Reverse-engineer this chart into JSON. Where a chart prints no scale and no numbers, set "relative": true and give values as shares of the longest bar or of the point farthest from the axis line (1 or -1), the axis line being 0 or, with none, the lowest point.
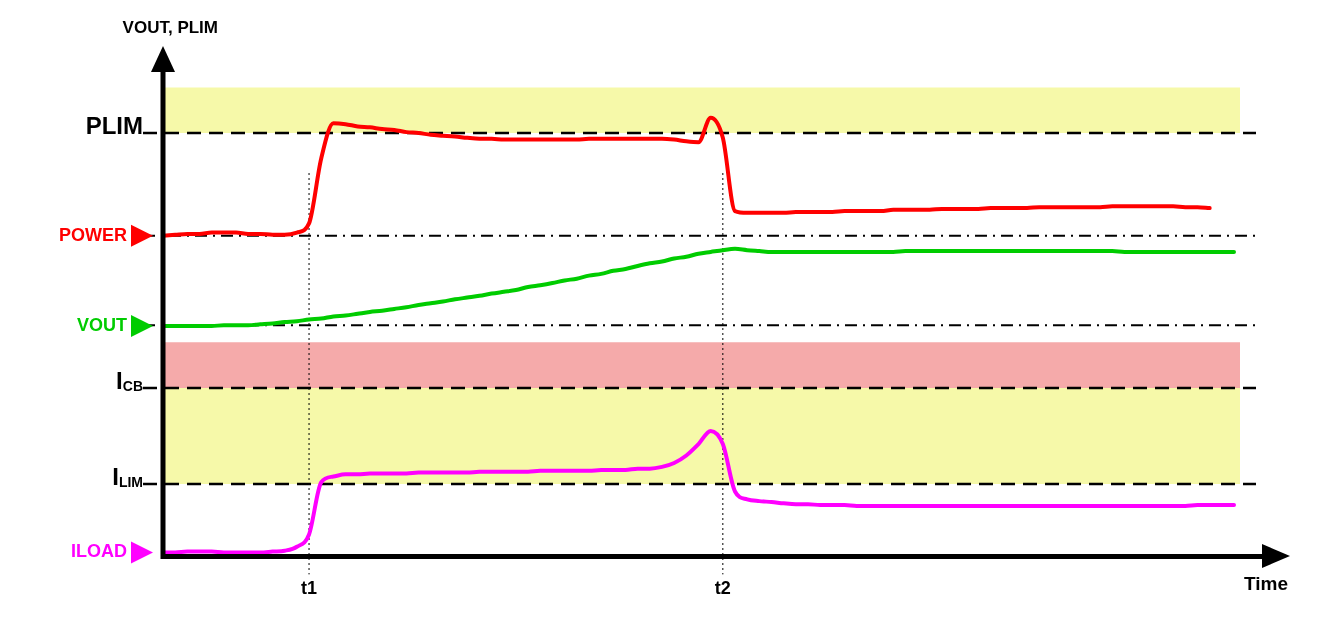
{
  "chart_data": {
    "type": "line",
    "relative": true,
    "legend": "left",
    "ylabel": "VOUT, PLIM",
    "xlabel": "Time",
    "categories": [
      null,
      null,
      null,
      null,
      null,
      null,
      null,
      null,
      null,
      null,
      null,
      null,
      "t1",
      null,
      null,
      null,
      null,
      null,
      null,
      null,
      null,
      null,
      null,
      null,
      null,
      null,
      null,
      null,
      null,
      null,
      null,
      null,
      null,
      null,
      null,
      null,
      null,
      null,
      null,
      null,
      null,
      null,
      null,
      null,
      null,
      null,
      "t2",
      null,
      null,
      null,
      null,
      null,
      null,
      null,
      null,
      null,
      null,
      null,
      null,
      null,
      null,
      null,
      null,
      null,
      null,
      null,
      null,
      null,
      null,
      null,
      null,
      null,
      null,
      null,
      null,
      null,
      null,
      null,
      null,
      null,
      null,
      null,
      null,
      null,
      null,
      null,
      null,
      null,
      null
    ],
    "series": [
      {
        "name": "POWER",
        "color": "#ff0000",
        "values": [
          0.731,
          0.733,
          0.735,
          0.735,
          0.738,
          0.738,
          0.738,
          0.735,
          0.735,
          0.733,
          0.733,
          0.738,
          0.759,
          0.907,
          0.987,
          0.985,
          0.98,
          0.978,
          0.974,
          0.972,
          0.967,
          0.965,
          0.961,
          0.959,
          0.957,
          0.954,
          0.952,
          0.952,
          0.95,
          0.95,
          0.95,
          0.95,
          0.95,
          0.95,
          0.95,
          0.952,
          0.952,
          0.952,
          0.952,
          0.952,
          0.952,
          0.952,
          0.95,
          0.946,
          0.944,
          1,
          0.954,
          0.787,
          0.783,
          0.783,
          0.783,
          0.783,
          0.785,
          0.785,
          0.785,
          0.785,
          0.787,
          0.787,
          0.787,
          0.787,
          0.79,
          0.79,
          0.79,
          0.79,
          0.792,
          0.792,
          0.792,
          0.792,
          0.794,
          0.794,
          0.794,
          0.794,
          0.796,
          0.796,
          0.796,
          0.796,
          0.796,
          0.796,
          0.798,
          0.798,
          0.798,
          0.798,
          0.798,
          0.798,
          0.796,
          0.796,
          0.794,
          null,
          null
        ]
      },
      {
        "name": "VOUT",
        "color": "#00cc00",
        "values": [
          0.525,
          0.525,
          0.525,
          0.525,
          0.525,
          0.527,
          0.527,
          0.527,
          0.529,
          0.531,
          0.534,
          0.536,
          0.54,
          0.542,
          0.547,
          0.549,
          0.553,
          0.557,
          0.56,
          0.564,
          0.568,
          0.573,
          0.577,
          0.581,
          0.586,
          0.59,
          0.594,
          0.599,
          0.603,
          0.607,
          0.614,
          0.618,
          0.623,
          0.629,
          0.633,
          0.64,
          0.644,
          0.651,
          0.655,
          0.662,
          0.668,
          0.672,
          0.679,
          0.683,
          0.69,
          0.694,
          0.698,
          0.701,
          0.698,
          0.696,
          0.694,
          0.694,
          0.694,
          0.694,
          0.694,
          0.694,
          0.694,
          0.694,
          0.694,
          0.694,
          0.694,
          0.696,
          0.696,
          0.696,
          0.696,
          0.696,
          0.696,
          0.696,
          0.696,
          0.696,
          0.696,
          0.696,
          0.696,
          0.696,
          0.696,
          0.696,
          0.696,
          0.696,
          0.696,
          0.694,
          0.694,
          0.694,
          0.694,
          0.694,
          0.694,
          0.694,
          0.694,
          0.694,
          0.694
        ]
      },
      {
        "name": "ILOAD",
        "color": "#ff00ff",
        "values": [
          0.009,
          0.009,
          0.011,
          0.011,
          0.011,
          0.009,
          0.009,
          0.009,
          0.009,
          0.011,
          0.013,
          0.022,
          0.05,
          0.169,
          0.182,
          0.187,
          0.187,
          0.189,
          0.189,
          0.189,
          0.189,
          0.191,
          0.191,
          0.191,
          0.191,
          0.191,
          0.193,
          0.193,
          0.193,
          0.193,
          0.193,
          0.195,
          0.195,
          0.195,
          0.195,
          0.195,
          0.197,
          0.197,
          0.197,
          0.2,
          0.2,
          0.204,
          0.213,
          0.23,
          0.256,
          0.286,
          0.256,
          0.148,
          0.13,
          0.126,
          0.124,
          0.121,
          0.119,
          0.119,
          0.117,
          0.117,
          0.117,
          0.115,
          0.115,
          0.115,
          0.115,
          0.115,
          0.115,
          0.115,
          0.115,
          0.115,
          0.115,
          0.115,
          0.115,
          0.115,
          0.115,
          0.115,
          0.115,
          0.115,
          0.115,
          0.115,
          0.115,
          0.115,
          0.115,
          0.115,
          0.115,
          0.115,
          0.115,
          0.115,
          0.115,
          0.117,
          0.117,
          0.117,
          0.117
        ]
      }
    ],
    "bands": [
      {
        "axis": "y",
        "from": 0.965,
        "to": 1.069,
        "color": "#f6f9a9"
      },
      {
        "axis": "y",
        "from": 0.384,
        "to": 0.488,
        "color": "#f5aaaa"
      },
      {
        "axis": "y",
        "from": 0.165,
        "to": 0.384,
        "color": "#f6f9a9"
      }
    ],
    "ref_lines": [
      {
        "axis": "y",
        "value": 0.965,
        "label": "PLIM",
        "color": "#000000",
        "line_style": "dashed"
      },
      {
        "axis": "y",
        "value": 0.731,
        "color": "#000000",
        "line_style": "dashdot"
      },
      {
        "axis": "y",
        "value": 0.527,
        "color": "#000000",
        "line_style": "dashdot"
      },
      {
        "axis": "y",
        "value": 0.384,
        "label": "I$_{CB}$",
        "color": "#000000",
        "line_style": "dashed"
      },
      {
        "axis": "y",
        "value": 0.165,
        "label": "I$_{LIM}$",
        "color": "#000000",
        "line_style": "dashed"
      },
      {
        "axis": "x",
        "value": "t1",
        "color": "#000000",
        "line_style": "dotted"
      },
      {
        "axis": "x",
        "value": "t2",
        "color": "#000000",
        "line_style": "dotted"
      }
    ]
  }
}
